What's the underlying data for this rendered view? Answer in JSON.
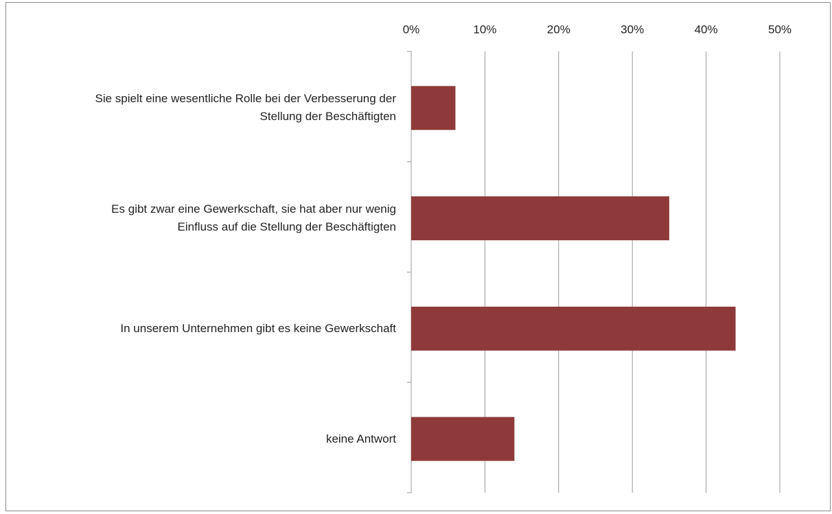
{
  "chart_data": {
    "type": "bar",
    "orientation": "horizontal",
    "categories": [
      "Sie spielt eine wesentliche Rolle bei der Verbesserung der Stellung der Beschäftigten",
      "Es gibt zwar eine Gewerkschaft, sie hat aber nur wenig Einfluss auf die Stellung der Beschäftigten",
      "In unserem Unternehmen gibt es keine Gewerkschaft",
      "keine Antwort"
    ],
    "values": [
      6,
      35,
      44,
      14
    ],
    "color": "#8e3a3a",
    "xlim": [
      0,
      50
    ],
    "xticks": [
      {
        "value": 0,
        "label": "0%"
      },
      {
        "value": 10,
        "label": "10%"
      },
      {
        "value": 20,
        "label": "20%"
      },
      {
        "value": 30,
        "label": "30%"
      },
      {
        "value": 40,
        "label": "40%"
      },
      {
        "value": 50,
        "label": "50%"
      }
    ],
    "grid": true
  }
}
